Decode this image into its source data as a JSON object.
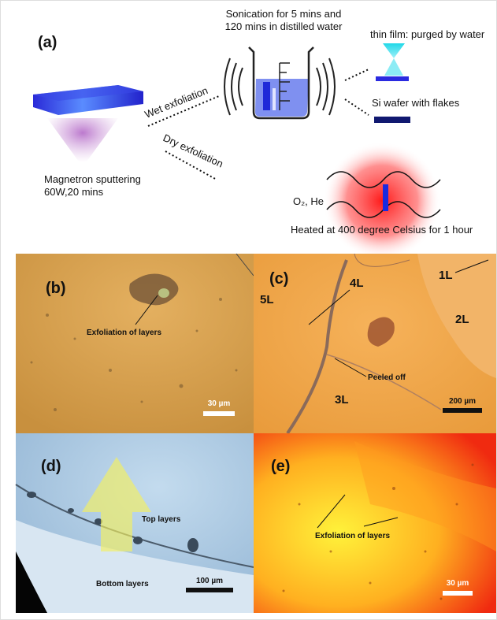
{
  "panel_a": {
    "label": "(a)",
    "sonication": [
      "Sonication for 5 mins and",
      "120 mins in distilled water"
    ],
    "thin_film": "thin film: purged by water",
    "si_wafer": "Si wafer with flakes",
    "wet": "Wet exfoliation",
    "dry": "Dry exfoliation",
    "sputtering": [
      "Magnetron sputtering",
      "60W,20 mins"
    ],
    "gas": "O₂, He",
    "heating": "Heated at 400 degree Celsius for 1 hour"
  },
  "panel_b": {
    "label": "(b)",
    "annotation": "Exfoliation of layers",
    "scale": "30 µm"
  },
  "panel_c": {
    "label": "(c)",
    "layers": [
      "5L",
      "4L",
      "1L",
      "2L",
      "3L"
    ],
    "annotation": "Peeled off",
    "scale": "200 µm"
  },
  "panel_d": {
    "label": "(d)",
    "top": "Top layers",
    "bottom": "Bottom layers",
    "scale": "100 µm"
  },
  "panel_e": {
    "label": "(e)",
    "annotation": "Exfoliation of layers",
    "scale": "30 µm"
  }
}
